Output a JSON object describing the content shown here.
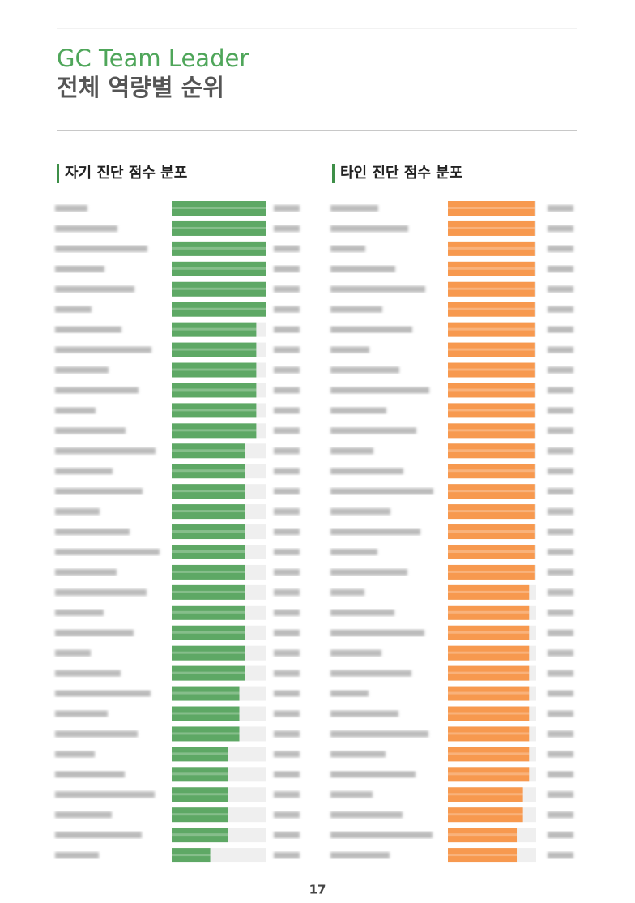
{
  "header": {
    "title": "GC Team Leader",
    "subtitle": "전체 역량별 순위"
  },
  "chart_data": [
    {
      "type": "bar",
      "title": "자기 진단 점수 분포",
      "color": "#5ea865",
      "xlim": [
        0,
        100
      ],
      "values": [
        100,
        100,
        100,
        100,
        100,
        100,
        90,
        90,
        90,
        90,
        90,
        90,
        78,
        78,
        78,
        78,
        78,
        78,
        78,
        78,
        78,
        78,
        78,
        78,
        72,
        72,
        72,
        60,
        60,
        60,
        60,
        60,
        41
      ]
    },
    {
      "type": "bar",
      "title": "타인 진단 점수 분포",
      "color": "#f7994f",
      "xlim": [
        0,
        100
      ],
      "values": [
        98,
        98,
        98,
        98,
        98,
        98,
        98,
        98,
        98,
        98,
        98,
        98,
        98,
        98,
        98,
        98,
        98,
        98,
        98,
        92,
        92,
        92,
        92,
        92,
        92,
        92,
        92,
        92,
        92,
        85,
        85,
        78,
        78
      ]
    }
  ],
  "footer": {
    "page": "17"
  }
}
